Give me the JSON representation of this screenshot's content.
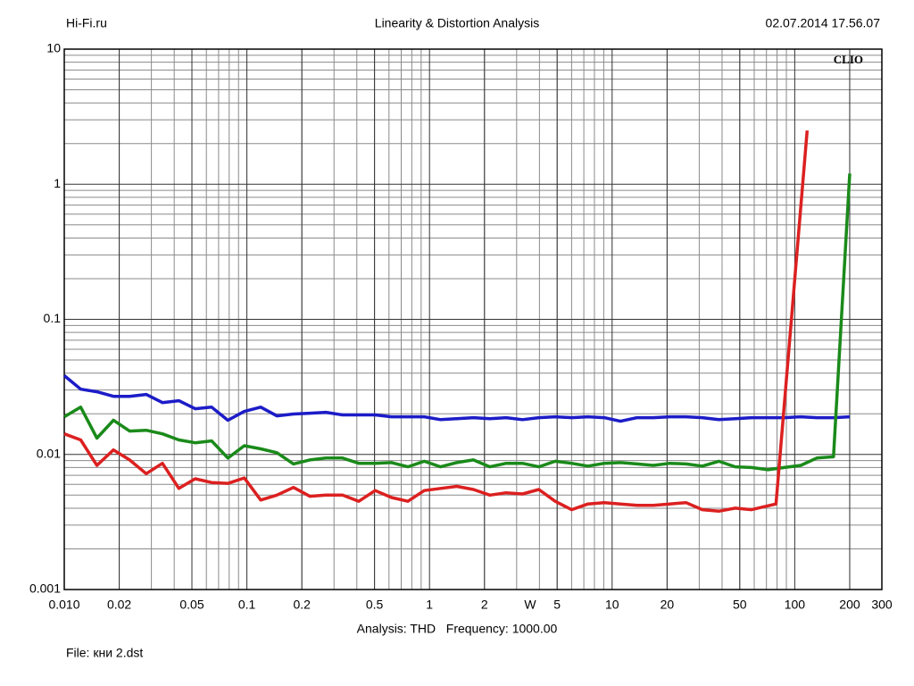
{
  "chart_data": {
    "type": "line",
    "header_left": "Hi-Fi.ru",
    "title": "Linearity & Distortion Analysis",
    "date": "02.07.2014 17.56.07",
    "logo": "CLIO",
    "caption": "Analysis: THD   Frequency: 1000.00",
    "file": "File: кни 2.dst",
    "x_unit": "W",
    "x_log": true,
    "y_log": true,
    "grid": true,
    "xlim": [
      0.01,
      300
    ],
    "ylim": [
      0.001,
      10
    ],
    "xticks": [
      {
        "value": 0.01,
        "label": "0.010"
      },
      0.02,
      0.05,
      0.1,
      0.2,
      0.5,
      1,
      2,
      5,
      10,
      20,
      50,
      100,
      200,
      300
    ],
    "yticks": [
      0.001,
      0.01,
      0.1,
      1,
      10
    ],
    "series": [
      {
        "color": "#1c1cc8",
        "x": [
          0.01,
          0.0123,
          0.0151,
          0.0186,
          0.0228,
          0.0281,
          0.0345,
          0.0424,
          0.0521,
          0.0641,
          0.0787,
          0.0968,
          0.119,
          0.146,
          0.18,
          0.221,
          0.271,
          0.334,
          0.41,
          0.504,
          0.62,
          0.762,
          0.936,
          1.15,
          1.41,
          1.74,
          2.14,
          2.63,
          3.23,
          3.97,
          4.88,
          6.0,
          7.37,
          9.06,
          11.1,
          13.7,
          16.8,
          20.7,
          25.4,
          31.2,
          38.4,
          47.2,
          58.0,
          71.3,
          87.6,
          108,
          132,
          163,
          200
        ],
        "values": [
          0.0383,
          0.0304,
          0.0291,
          0.0269,
          0.0269,
          0.0278,
          0.0242,
          0.025,
          0.0218,
          0.0224,
          0.0179,
          0.0208,
          0.0224,
          0.0193,
          0.0199,
          0.0202,
          0.0205,
          0.0196,
          0.0196,
          0.0196,
          0.019,
          0.019,
          0.019,
          0.0181,
          0.0184,
          0.0187,
          0.0184,
          0.0187,
          0.0181,
          0.0187,
          0.019,
          0.0187,
          0.019,
          0.0187,
          0.0176,
          0.0187,
          0.0187,
          0.019,
          0.019,
          0.0187,
          0.0181,
          0.0184,
          0.0187,
          0.0187,
          0.0187,
          0.019,
          0.0187,
          0.0187,
          0.019
        ]
      },
      {
        "color": "#1a8a1a",
        "x": [
          0.01,
          0.0123,
          0.0151,
          0.0186,
          0.0228,
          0.0281,
          0.0345,
          0.0424,
          0.0521,
          0.0641,
          0.0787,
          0.0968,
          0.119,
          0.146,
          0.18,
          0.221,
          0.271,
          0.334,
          0.41,
          0.504,
          0.62,
          0.762,
          0.936,
          1.15,
          1.41,
          1.74,
          2.14,
          2.63,
          3.23,
          3.97,
          4.88,
          6.0,
          7.37,
          9.06,
          11.1,
          13.7,
          16.8,
          20.7,
          25.4,
          31.2,
          38.4,
          47.2,
          58.0,
          71.3,
          87.6,
          108,
          132,
          163,
          200
        ],
        "values": [
          0.019,
          0.0224,
          0.0132,
          0.0179,
          0.0149,
          0.0151,
          0.0142,
          0.0128,
          0.0122,
          0.0126,
          0.0094,
          0.0116,
          0.011,
          0.0103,
          0.0085,
          0.0091,
          0.0094,
          0.0094,
          0.0086,
          0.0086,
          0.0087,
          0.0081,
          0.0089,
          0.0081,
          0.0087,
          0.0091,
          0.0081,
          0.0086,
          0.0086,
          0.0081,
          0.0089,
          0.0086,
          0.0082,
          0.0086,
          0.0087,
          0.0085,
          0.0083,
          0.0086,
          0.0085,
          0.0082,
          0.0089,
          0.0081,
          0.008,
          0.0077,
          0.008,
          0.0083,
          0.0094,
          0.0096,
          1.2
        ]
      },
      {
        "color": "#dc2020",
        "x": [
          0.01,
          0.0123,
          0.0151,
          0.0186,
          0.0228,
          0.0281,
          0.0345,
          0.0424,
          0.0521,
          0.0641,
          0.0787,
          0.0968,
          0.119,
          0.146,
          0.18,
          0.221,
          0.271,
          0.334,
          0.41,
          0.504,
          0.62,
          0.762,
          0.936,
          1.15,
          1.41,
          1.74,
          2.14,
          2.63,
          3.23,
          3.97,
          4.88,
          6.0,
          7.37,
          9.06,
          11.1,
          13.7,
          16.8,
          20.7,
          25.4,
          31.2,
          38.4,
          47.2,
          58.0,
          79,
          117
        ],
        "values": [
          0.0142,
          0.0128,
          0.0083,
          0.0108,
          0.0091,
          0.0072,
          0.0086,
          0.0056,
          0.0066,
          0.0062,
          0.0061,
          0.0067,
          0.0046,
          0.005,
          0.0057,
          0.0049,
          0.005,
          0.005,
          0.0045,
          0.0054,
          0.0048,
          0.0045,
          0.0054,
          0.0056,
          0.0058,
          0.0055,
          0.005,
          0.0052,
          0.0051,
          0.0055,
          0.0045,
          0.0039,
          0.0043,
          0.0044,
          0.0043,
          0.0042,
          0.0042,
          0.0043,
          0.0044,
          0.0039,
          0.0038,
          0.004,
          0.0039,
          0.0043,
          2.5
        ]
      }
    ]
  }
}
